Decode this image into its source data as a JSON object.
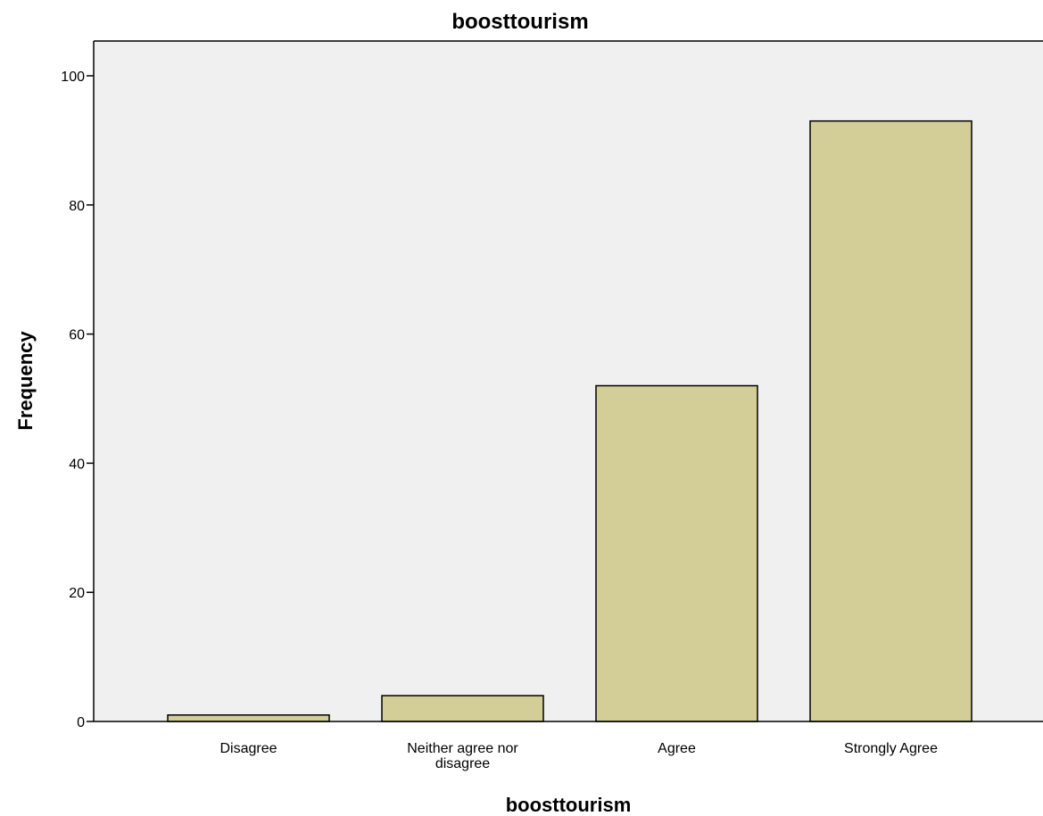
{
  "chart_data": {
    "type": "bar",
    "title": "boosttourism",
    "xlabel": "boosttourism",
    "ylabel": "Frequency",
    "categories": [
      [
        "Disagree"
      ],
      [
        "Neither agree nor",
        "disagree"
      ],
      [
        "Agree"
      ],
      [
        "Strongly Agree"
      ]
    ],
    "values": [
      1,
      4,
      52,
      93
    ],
    "ylim": [
      0,
      105
    ],
    "yticks": [
      0,
      20,
      40,
      60,
      80,
      100
    ],
    "grid": false,
    "colors": {
      "plot_background": "#f0f0f0",
      "bar_fill": "#d3ce97",
      "bar_stroke": "#000000",
      "axis": "#000000"
    }
  }
}
